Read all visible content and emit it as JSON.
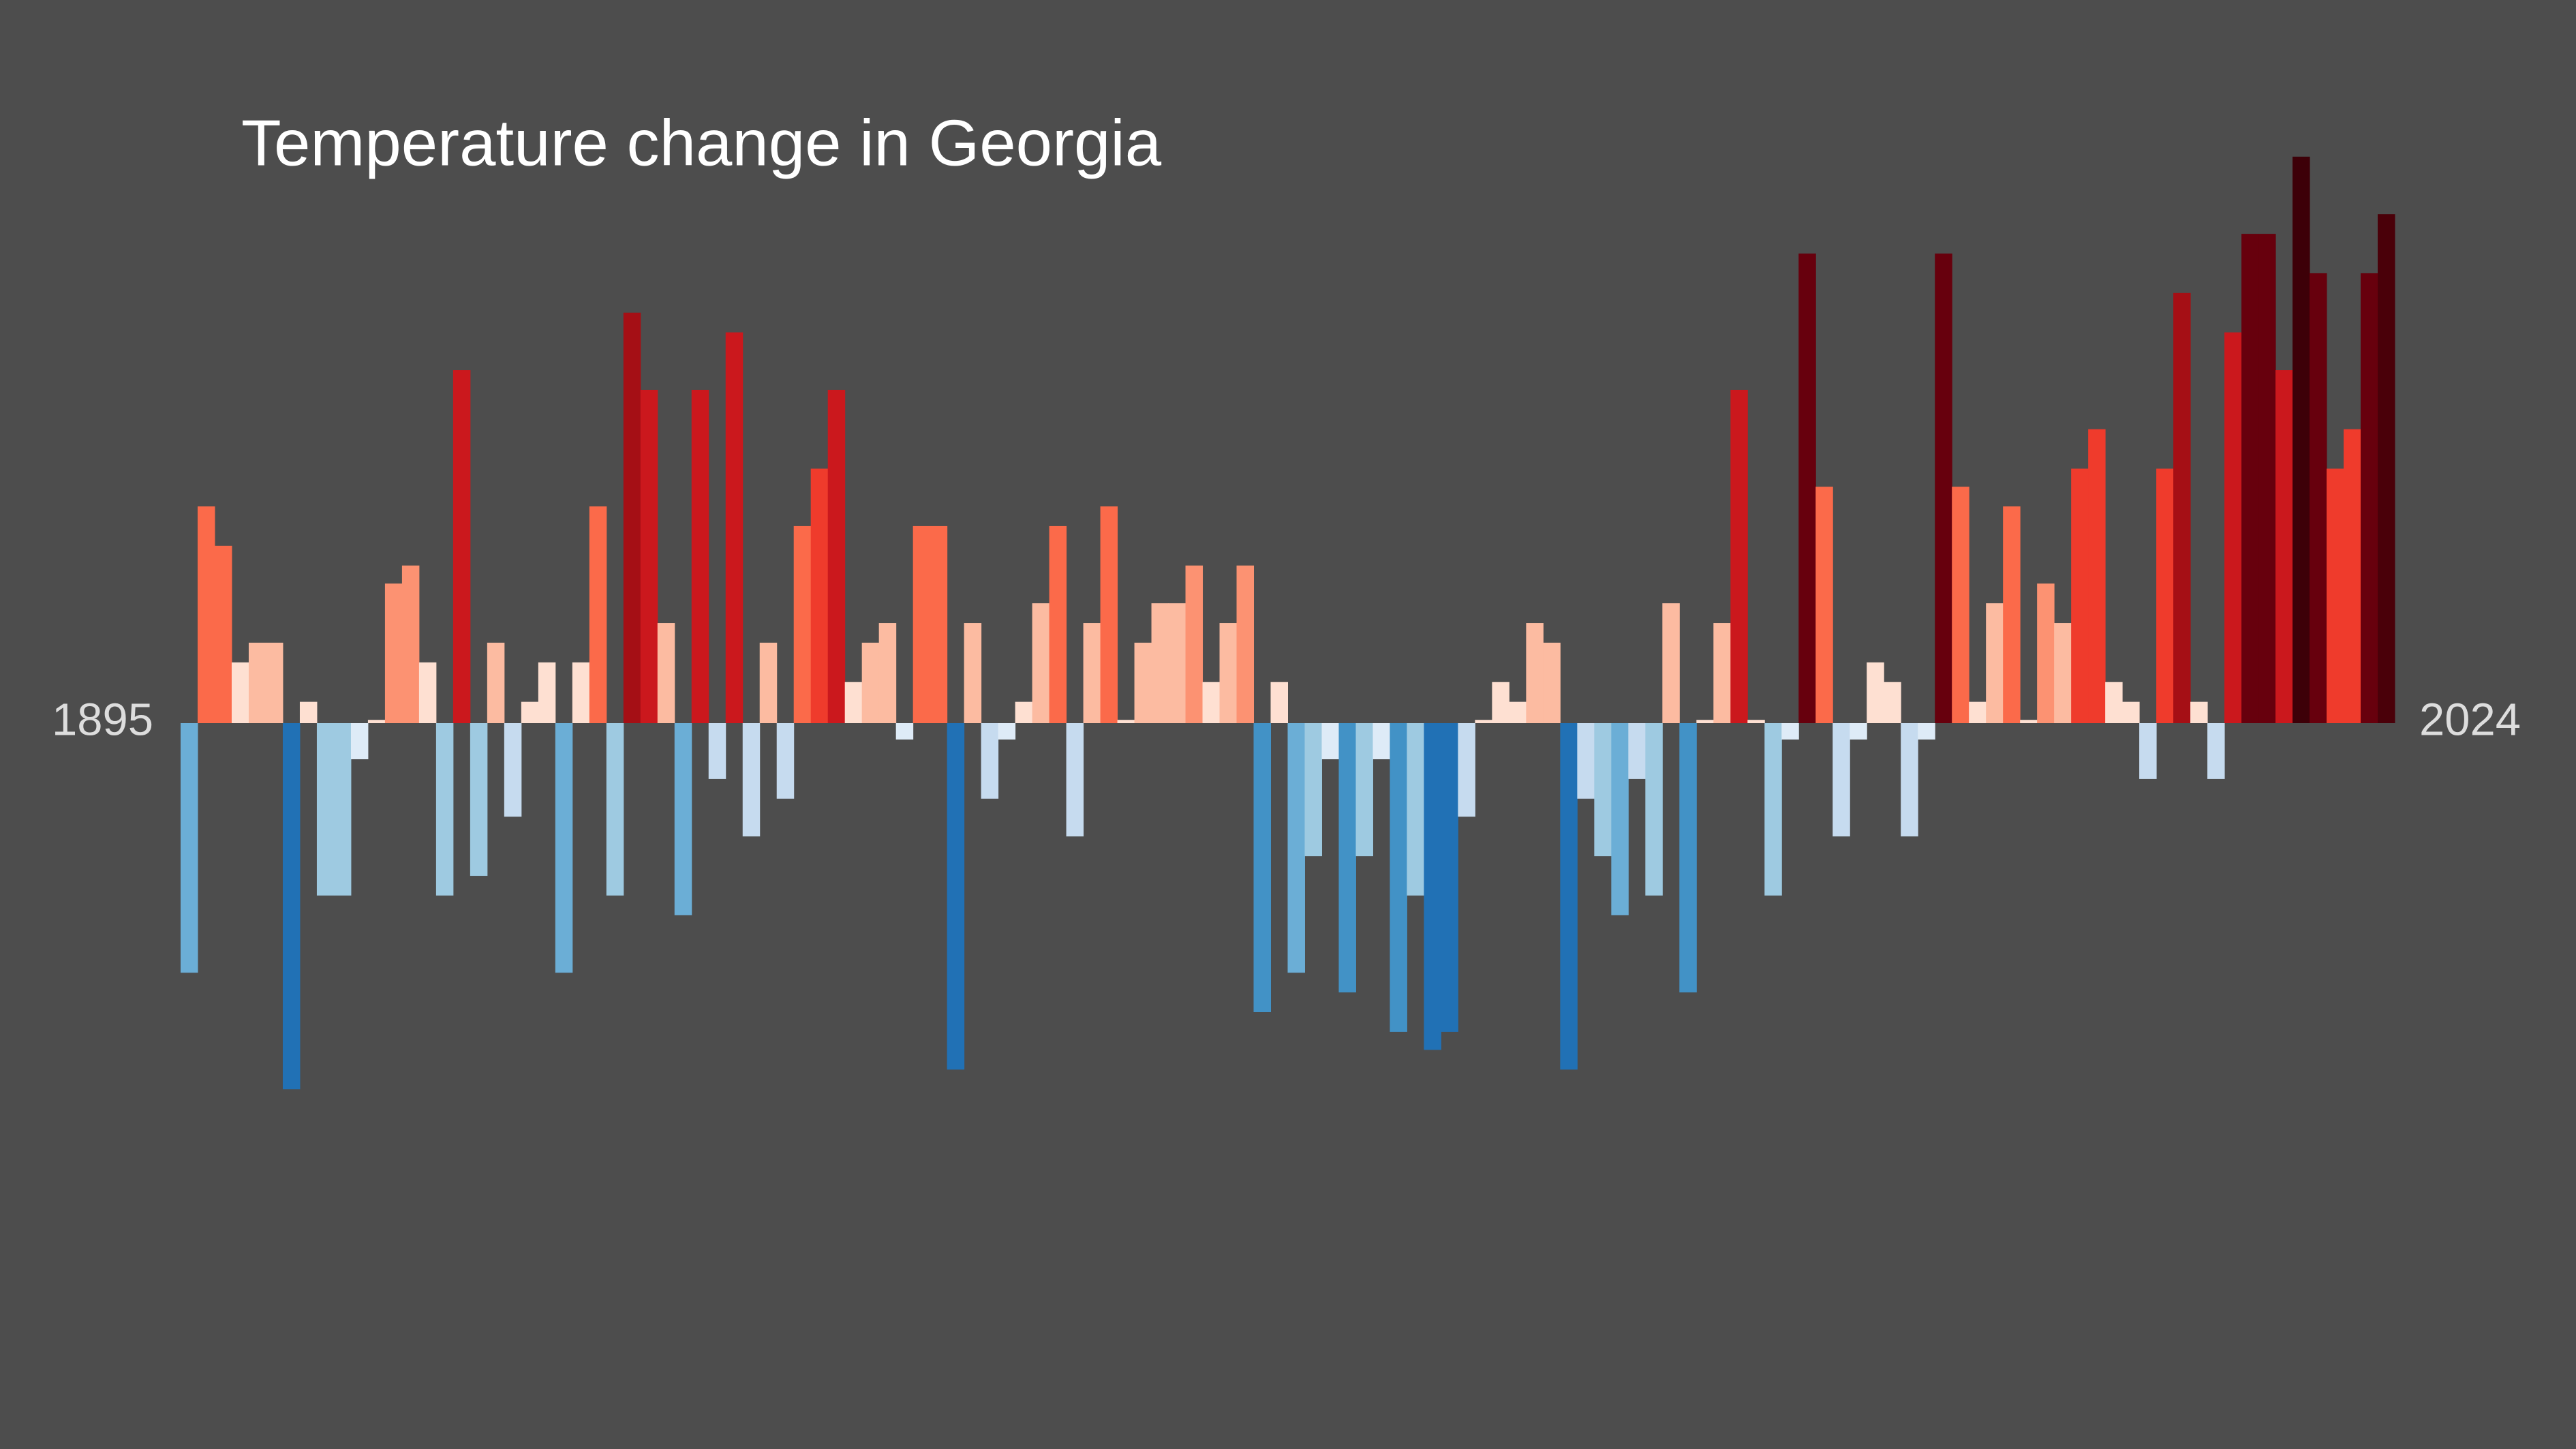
{
  "chart_data": {
    "type": "bar",
    "title": "Temperature change in Georgia",
    "categories": [
      "1895",
      null,
      null,
      null,
      null,
      null,
      null,
      null,
      null,
      null,
      null,
      null,
      null,
      null,
      null,
      null,
      null,
      null,
      null,
      null,
      null,
      null,
      null,
      null,
      null,
      null,
      null,
      null,
      null,
      null,
      null,
      null,
      null,
      null,
      null,
      null,
      null,
      null,
      null,
      null,
      null,
      null,
      null,
      null,
      null,
      null,
      null,
      null,
      null,
      null,
      null,
      null,
      null,
      null,
      null,
      null,
      null,
      null,
      null,
      null,
      null,
      null,
      null,
      null,
      null,
      null,
      null,
      null,
      null,
      null,
      null,
      null,
      null,
      null,
      null,
      null,
      null,
      null,
      null,
      null,
      null,
      null,
      null,
      null,
      null,
      null,
      null,
      null,
      null,
      null,
      null,
      null,
      null,
      null,
      null,
      null,
      null,
      null,
      null,
      null,
      null,
      null,
      null,
      null,
      null,
      null,
      null,
      null,
      null,
      null,
      null,
      null,
      null,
      null,
      null,
      null,
      null,
      null,
      null,
      null,
      null,
      null,
      null,
      null,
      null,
      null,
      null,
      null,
      null,
      "2024"
    ],
    "values": [
      -1.52,
      1.32,
      1.08,
      0.37,
      0.49,
      0.49,
      -2.23,
      0.13,
      -1.05,
      -1.05,
      -0.22,
      0.02,
      0.85,
      0.96,
      0.37,
      -1.05,
      2.15,
      -0.93,
      0.49,
      -0.57,
      0.13,
      0.37,
      -1.52,
      0.37,
      1.32,
      -1.05,
      2.5,
      2.03,
      0.61,
      -1.17,
      2.03,
      -0.34,
      2.38,
      -0.69,
      0.49,
      -0.46,
      1.2,
      1.55,
      2.03,
      0.25,
      0.49,
      0.61,
      -0.1,
      1.2,
      1.2,
      -2.11,
      0.61,
      -0.46,
      -0.1,
      0.13,
      0.73,
      1.2,
      -0.69,
      0.61,
      1.32,
      0.02,
      0.49,
      0.73,
      0.73,
      0.96,
      0.25,
      0.61,
      0.96,
      -1.76,
      0.25,
      -1.52,
      -0.81,
      -0.22,
      -1.64,
      -0.81,
      -0.22,
      -1.88,
      -1.05,
      -1.99,
      -1.88,
      -0.57,
      0.02,
      0.25,
      0.13,
      0.61,
      0.49,
      -2.11,
      -0.46,
      -0.81,
      -1.17,
      -0.34,
      -1.05,
      0.73,
      -1.64,
      0.02,
      0.61,
      2.03,
      0.02,
      -1.05,
      -0.1,
      2.86,
      1.44,
      -0.69,
      -0.1,
      0.37,
      0.25,
      -0.69,
      -0.1,
      2.86,
      1.44,
      0.13,
      0.73,
      1.32,
      0.02,
      0.85,
      0.61,
      1.55,
      1.79,
      0.25,
      0.13,
      -0.34,
      1.55,
      2.62,
      0.13,
      -0.34,
      2.38,
      2.98,
      2.98,
      2.15,
      3.45,
      2.74,
      1.55,
      1.79,
      2.74,
      3.1
    ],
    "colors": [
      "#6baed6",
      "#fb6a4a",
      "#fb6a4a",
      "#fee0d2",
      "#fcbba1",
      "#fcbba1",
      "#2171b5",
      "#fee0d2",
      "#9ecae1",
      "#9ecae1",
      "#deebf7",
      "#fee0d2",
      "#fc9272",
      "#fc9272",
      "#fee0d2",
      "#9ecae1",
      "#cb181d",
      "#9ecae1",
      "#fcbba1",
      "#c6dbef",
      "#fee0d2",
      "#fee0d2",
      "#6baed6",
      "#fee0d2",
      "#fb6a4a",
      "#9ecae1",
      "#a50f15",
      "#cb181d",
      "#fcbba1",
      "#6baed6",
      "#cb181d",
      "#c6dbef",
      "#cb181d",
      "#c6dbef",
      "#fcbba1",
      "#c6dbef",
      "#fb6a4a",
      "#ef3b2c",
      "#cb181d",
      "#fee0d2",
      "#fcbba1",
      "#fcbba1",
      "#deebf7",
      "#fb6a4a",
      "#fb6a4a",
      "#2171b5",
      "#fcbba1",
      "#c6dbef",
      "#deebf7",
      "#fee0d2",
      "#fcbba1",
      "#fb6a4a",
      "#c6dbef",
      "#fcbba1",
      "#fb6a4a",
      "#fee0d2",
      "#fcbba1",
      "#fcbba1",
      "#fcbba1",
      "#fc9272",
      "#fee0d2",
      "#fcbba1",
      "#fc9272",
      "#4292c6",
      "#fee0d2",
      "#6baed6",
      "#9ecae1",
      "#deebf7",
      "#4292c6",
      "#9ecae1",
      "#deebf7",
      "#4292c6",
      "#9ecae1",
      "#2171b5",
      "#2171b5",
      "#c6dbef",
      "#fee0d2",
      "#fee0d2",
      "#fee0d2",
      "#fcbba1",
      "#fcbba1",
      "#2171b5",
      "#c6dbef",
      "#9ecae1",
      "#6baed6",
      "#c6dbef",
      "#9ecae1",
      "#fcbba1",
      "#4292c6",
      "#fee0d2",
      "#fcbba1",
      "#cb181d",
      "#fee0d2",
      "#9ecae1",
      "#deebf7",
      "#67000d",
      "#fb6a4a",
      "#c6dbef",
      "#deebf7",
      "#fee0d2",
      "#fee0d2",
      "#c6dbef",
      "#deebf7",
      "#67000d",
      "#fb6a4a",
      "#fee0d2",
      "#fcbba1",
      "#fb6a4a",
      "#fee0d2",
      "#fc9272",
      "#fcbba1",
      "#ef3b2c",
      "#ef3b2c",
      "#fee0d2",
      "#fee0d2",
      "#c6dbef",
      "#ef3b2c",
      "#a50f15",
      "#fee0d2",
      "#c6dbef",
      "#cb181d",
      "#67000d",
      "#67000d",
      "#cb181d",
      "#3d0008",
      "#67000d",
      "#ef3b2c",
      "#ef3b2c",
      "#67000d",
      "#4a0009"
    ],
    "ylim": [
      -4.4,
      4.4
    ]
  }
}
